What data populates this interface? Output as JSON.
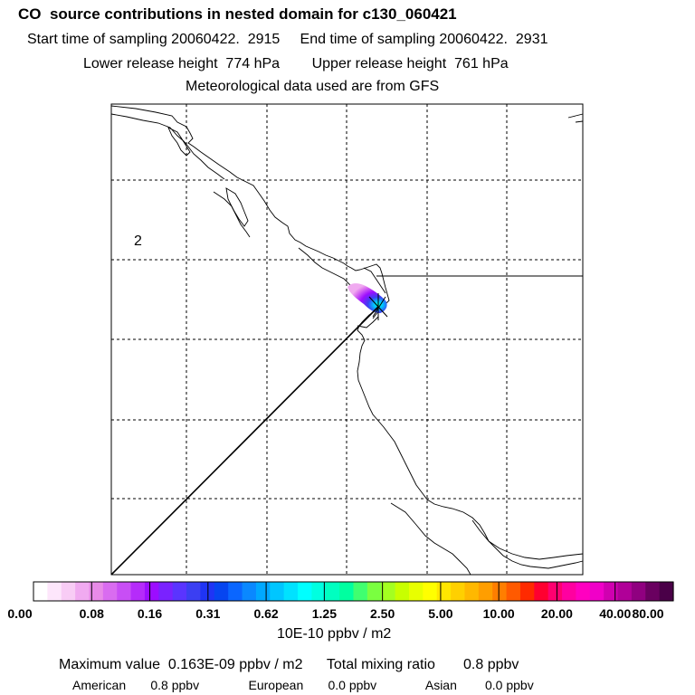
{
  "header": {
    "title": "CO  source contributions in nested domain for c130_060421",
    "sampling_line": "Start time of sampling 20060422.  2915     End time of sampling 20060422.  2931",
    "release_line": "Lower release height  774 hPa        Upper release height  761 hPa",
    "met_line": "Meteorological data used are from GFS"
  },
  "map": {
    "region_marker": "2"
  },
  "colorbar": {
    "colors": [
      "#ffffff",
      "#fde6fb",
      "#f8ccf5",
      "#f0aaf0",
      "#e88be8",
      "#d96cf0",
      "#c84ef5",
      "#b52cfa",
      "#9c0dff",
      "#7a22ff",
      "#5a34ff",
      "#3b3ff2",
      "#1f34f5",
      "#0645f0",
      "#0a66ff",
      "#0a88ff",
      "#00a8ff",
      "#00c6ff",
      "#00e2ff",
      "#00ffff",
      "#00ffe0",
      "#00ffc0",
      "#00ffa0",
      "#40ff70",
      "#7aff40",
      "#a4ff20",
      "#c8ff00",
      "#e8ff00",
      "#ffff00",
      "#ffe600",
      "#ffd000",
      "#ffb800",
      "#ff9e00",
      "#ff7e00",
      "#ff5a00",
      "#ff2a00",
      "#ff0030",
      "#ff0070",
      "#ff00a0",
      "#ff00c0",
      "#f000c8",
      "#d000b0",
      "#b00098",
      "#900080",
      "#6a0060",
      "#4a0048"
    ],
    "ticks": [
      "0.00",
      "0.08",
      "0.16",
      "0.31",
      "0.62",
      "1.25",
      "2.50",
      "5.00",
      "10.00",
      "20.00",
      "40.00",
      "80.00"
    ],
    "units": "10E-10 ppbv / m2"
  },
  "stats": {
    "line1": "Maximum value  0.163E-09 ppbv / m2      Total mixing ratio       0.8 ppbv",
    "line2": "American       0.8 ppbv              European       0.0 ppbv              Asian        0.0 ppbv"
  }
}
